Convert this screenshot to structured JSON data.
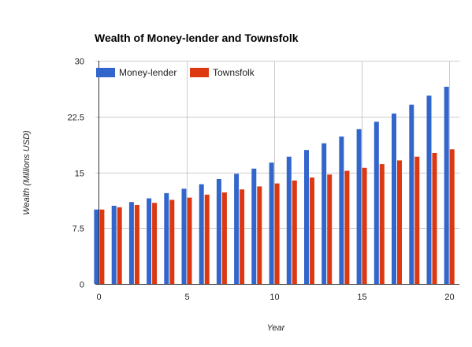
{
  "chart_data": {
    "type": "bar",
    "title": "Wealth of Money-lender and Townsfolk",
    "xlabel": "Year",
    "ylabel": "Wealth (Millions USD)",
    "x": [
      0,
      1,
      2,
      3,
      4,
      5,
      6,
      7,
      8,
      9,
      10,
      11,
      12,
      13,
      14,
      15,
      16,
      17,
      18,
      19,
      20
    ],
    "xticks": [
      0,
      5,
      10,
      15,
      20
    ],
    "xlim": [
      -0.2,
      20.6
    ],
    "ylim": [
      0,
      30
    ],
    "yticks": [
      0,
      7.5,
      15,
      22.5,
      30
    ],
    "ytick_labels": [
      "0",
      "7.5",
      "15",
      "22.5",
      "30"
    ],
    "xtick_labels": [
      "0",
      "5",
      "10",
      "15",
      "20"
    ],
    "grid": true,
    "legend_position": "top-left",
    "series": [
      {
        "name": "Money-lender",
        "color": "#3366cc",
        "values": [
          10.0,
          10.5,
          11.0,
          11.5,
          12.2,
          12.8,
          13.4,
          14.1,
          14.8,
          15.5,
          16.3,
          17.1,
          18.0,
          18.9,
          19.8,
          20.8,
          21.8,
          22.9,
          24.1,
          25.3,
          26.5
        ]
      },
      {
        "name": "Townsfolk",
        "color": "#dc3912",
        "values": [
          10.0,
          10.3,
          10.6,
          10.9,
          11.3,
          11.6,
          12.0,
          12.3,
          12.7,
          13.1,
          13.5,
          13.9,
          14.3,
          14.7,
          15.2,
          15.6,
          16.1,
          16.6,
          17.1,
          17.6,
          18.1
        ]
      }
    ]
  }
}
